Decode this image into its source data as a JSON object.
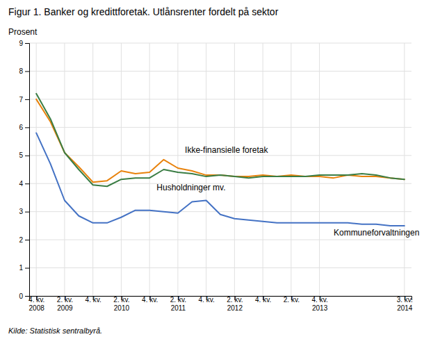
{
  "chart_data": {
    "type": "line",
    "title": "Figur 1. Banker og kredittforetak. Utlånsrenter fordelt på sektor",
    "y_label": "Prosent",
    "source": "Kilde: Statistisk sentralbyrå.",
    "categories": [
      "4. kv.\n2008",
      null,
      "2. kv.\n2009",
      null,
      "4. kv.",
      null,
      "2. kv.\n2010",
      null,
      "4. kv.",
      null,
      "2. kv.\n2011",
      null,
      "4. kv.",
      null,
      "2. kv.\n2012",
      null,
      "4. kv.",
      null,
      "2. kv.",
      null,
      "4. kv.\n2013",
      null,
      null,
      null,
      null,
      null,
      "3. kv.\n2014"
    ],
    "series": [
      {
        "color": "#E8820C",
        "values": [
          7.0,
          6.2,
          5.1,
          4.6,
          4.05,
          4.1,
          4.45,
          4.35,
          4.4,
          4.85,
          4.55,
          4.45,
          4.3,
          4.3,
          4.25,
          4.25,
          4.3,
          4.25,
          4.3,
          4.25,
          4.25,
          4.2,
          4.3,
          4.25,
          4.25,
          4.2,
          4.15
        ]
      },
      {
        "color": "#3A7D44",
        "values": [
          7.2,
          6.3,
          5.1,
          4.5,
          3.95,
          3.9,
          4.15,
          4.2,
          4.2,
          4.5,
          4.4,
          4.35,
          4.25,
          4.3,
          4.25,
          4.2,
          4.25,
          4.25,
          4.25,
          4.25,
          4.3,
          4.3,
          4.3,
          4.35,
          4.3,
          4.2,
          4.15
        ]
      },
      {
        "color": "#4472C4",
        "values": [
          5.8,
          4.7,
          3.4,
          2.85,
          2.6,
          2.6,
          2.8,
          3.05,
          3.05,
          3.0,
          2.95,
          3.35,
          3.4,
          2.9,
          2.75,
          2.7,
          2.65,
          2.6,
          2.6,
          2.6,
          2.6,
          2.6,
          2.6,
          2.55,
          2.55,
          2.5,
          2.5
        ]
      }
    ],
    "annotations": [
      {
        "text": "Ikke-finansielle foretak",
        "x": 10.5,
        "y": 5.1
      },
      {
        "text": "Husholdninger mv.",
        "x": 8.5,
        "y": 3.75
      },
      {
        "text": "Kommuneforvaltningen",
        "x": 21.0,
        "y": 2.15
      }
    ],
    "ylim": [
      0,
      9
    ],
    "yticks": [
      0,
      1,
      2,
      3,
      4,
      5,
      6,
      7,
      8,
      9
    ],
    "grid": true
  }
}
